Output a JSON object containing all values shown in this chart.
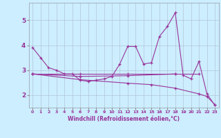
{
  "xlabel": "Windchill (Refroidissement éolien,°C)",
  "background_color": "#cceeff",
  "grid_color": "#aabbcc",
  "line_color": "#993399",
  "xlim": [
    -0.5,
    23.5
  ],
  "ylim": [
    1.5,
    5.7
  ],
  "yticks": [
    2,
    3,
    4,
    5
  ],
  "xticks": [
    0,
    1,
    2,
    3,
    4,
    5,
    6,
    7,
    8,
    9,
    10,
    11,
    12,
    13,
    14,
    15,
    16,
    17,
    18,
    19,
    20,
    21,
    22,
    23
  ],
  "lines": [
    {
      "x": [
        0,
        1,
        2,
        3,
        4,
        5,
        6,
        7,
        8,
        9,
        10,
        11,
        12,
        13,
        14,
        15,
        16,
        17,
        18,
        19,
        20,
        21,
        22,
        23
      ],
      "y": [
        3.9,
        3.5,
        3.1,
        3.0,
        2.85,
        2.85,
        2.6,
        2.55,
        2.6,
        2.65,
        2.75,
        3.25,
        3.95,
        3.95,
        3.25,
        3.3,
        4.35,
        4.75,
        5.3,
        2.8,
        2.65,
        3.35,
        2.05,
        1.6
      ]
    },
    {
      "x": [
        0,
        6,
        12,
        18,
        21
      ],
      "y": [
        2.85,
        2.85,
        2.85,
        2.85,
        2.85
      ]
    },
    {
      "x": [
        0,
        6,
        12,
        18
      ],
      "y": [
        2.85,
        2.75,
        2.78,
        2.85
      ]
    },
    {
      "x": [
        0,
        6,
        12,
        15,
        18,
        21,
        22,
        23
      ],
      "y": [
        2.85,
        2.62,
        2.48,
        2.42,
        2.28,
        2.05,
        1.95,
        1.62
      ]
    }
  ]
}
